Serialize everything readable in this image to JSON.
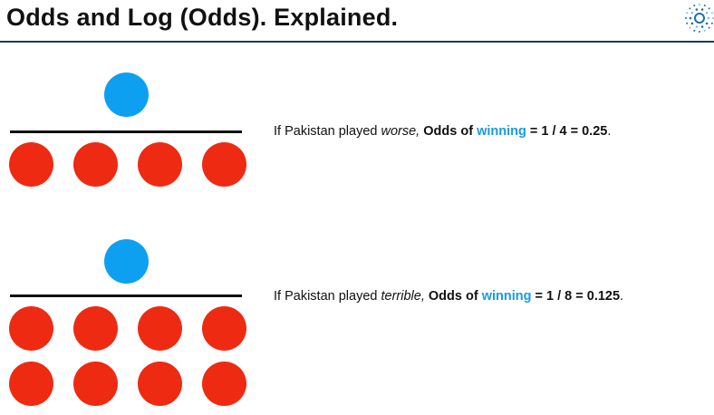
{
  "slide": {
    "title": "Odds and Log (Odds). Explained."
  },
  "colors": {
    "win": "#0ea0f0",
    "loss": "#ee2a12",
    "bar": "#111111",
    "highlight": "#1a9ae6",
    "header_rule": "#1e3a57"
  },
  "logo": {
    "icon": "dotted-circle-logo"
  },
  "scenarios": [
    {
      "wins": 1,
      "losses": 4,
      "prefix": "If Pakistan played",
      "performance": "worse,",
      "odds_label": "Odds of",
      "highlight_word": "winning",
      "equals": "=",
      "numerator": "1",
      "slash": "/",
      "denominator": "4",
      "equals2": "=",
      "result": "0.25",
      "period": "."
    },
    {
      "wins": 1,
      "losses": 8,
      "prefix": "If Pakistan played",
      "performance": "terrible,",
      "odds_label": "Odds of",
      "highlight_word": "winning",
      "equals": "=",
      "numerator": "1",
      "slash": "/",
      "denominator": "8",
      "equals2": "=",
      "result": "0.125",
      "period": "."
    }
  ]
}
